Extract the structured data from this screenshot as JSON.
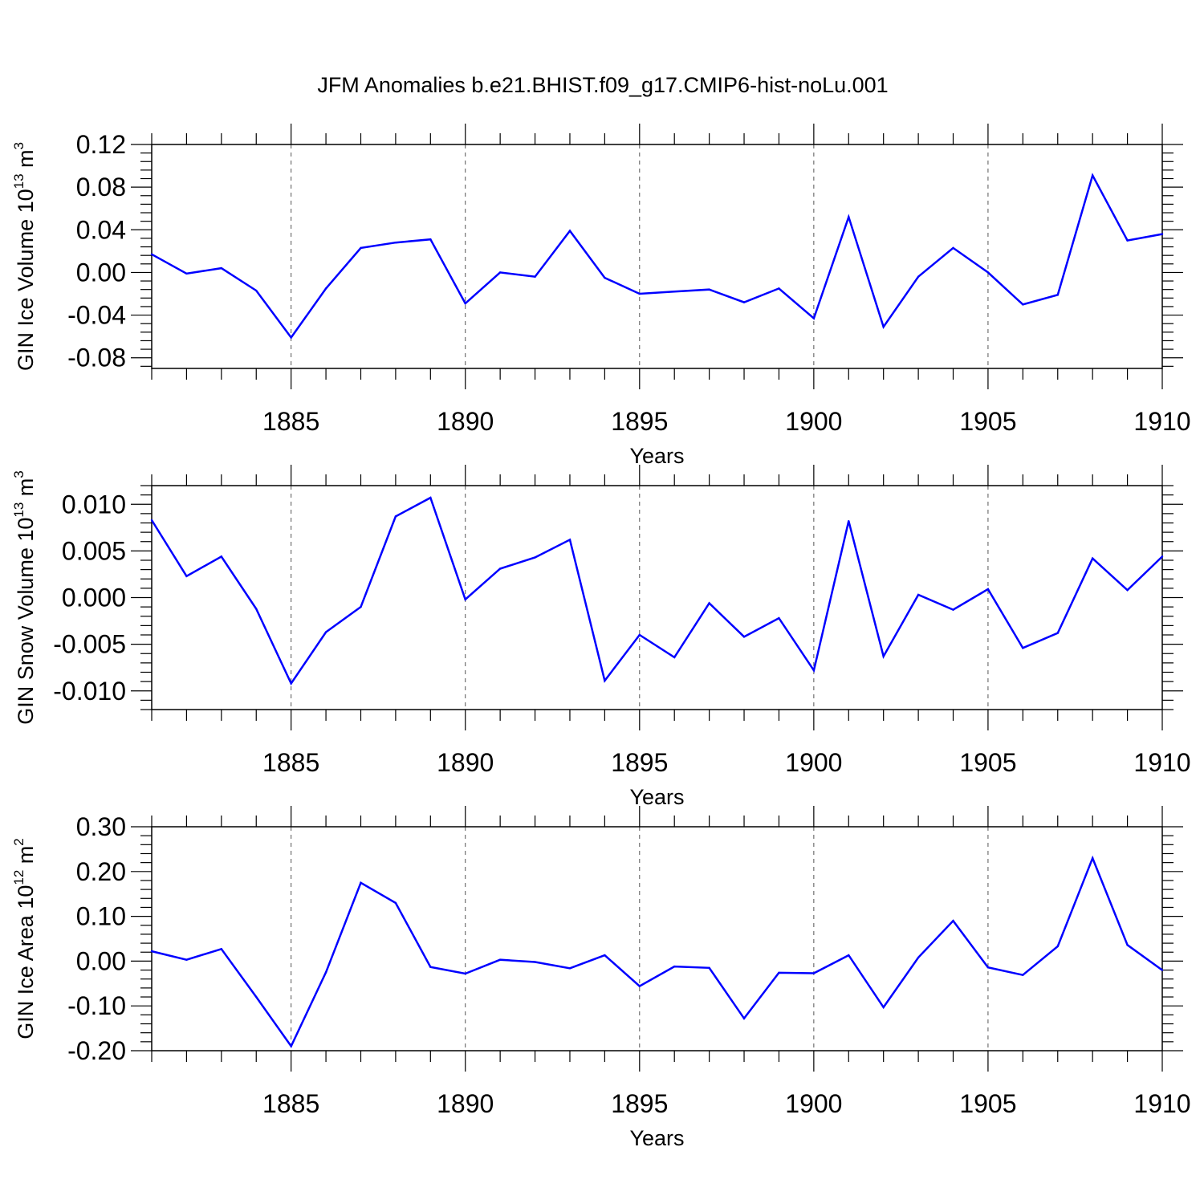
{
  "chart_data": {
    "type": "line",
    "title": "JFM Anomalies b.e21.BHIST.f09_g17.CMIP6-hist-noLu.001",
    "line_color": "#0000ff",
    "panels": [
      {
        "type": "line",
        "ylabel_text": "GIN Ice Volume 10",
        "ylabel_exp": "13",
        "ylabel_unit": " m",
        "ylabel_unit_exp": "3",
        "xlabel": "Years",
        "xlim": [
          1881,
          1910
        ],
        "ylim": [
          -0.09,
          0.12
        ],
        "yticks": [
          0.12,
          0.08,
          0.04,
          0.0,
          -0.04,
          -0.08
        ],
        "ytick_labels": [
          "0.12",
          "0.08",
          "0.04",
          "0.00",
          "-0.04",
          "-0.08"
        ],
        "xticks": [
          1885,
          1890,
          1895,
          1900,
          1905,
          1910
        ],
        "xtick_labels": [
          "1885",
          "1890",
          "1895",
          "1900",
          "1905",
          "1910"
        ],
        "x": [
          1881,
          1882,
          1883,
          1884,
          1885,
          1886,
          1887,
          1888,
          1889,
          1890,
          1891,
          1892,
          1893,
          1894,
          1895,
          1896,
          1897,
          1898,
          1899,
          1900,
          1901,
          1902,
          1903,
          1904,
          1905,
          1906,
          1907,
          1908,
          1909,
          1910
        ],
        "y": [
          0.017,
          -0.001,
          0.004,
          -0.017,
          -0.061,
          -0.015,
          0.023,
          0.028,
          0.031,
          -0.029,
          0.0,
          -0.004,
          0.039,
          -0.005,
          -0.02,
          -0.018,
          -0.016,
          -0.028,
          -0.015,
          -0.043,
          0.052,
          -0.051,
          -0.004,
          0.023,
          0.0,
          -0.03,
          -0.021,
          0.091,
          0.03,
          0.036
        ]
      },
      {
        "type": "line",
        "ylabel_text": "GIN Snow Volume 10",
        "ylabel_exp": "13",
        "ylabel_unit": " m",
        "ylabel_unit_exp": "3",
        "xlabel": "Years",
        "xlim": [
          1881,
          1910
        ],
        "ylim": [
          -0.012,
          0.012
        ],
        "yticks": [
          0.01,
          0.005,
          0.0,
          -0.005,
          -0.01
        ],
        "ytick_labels": [
          "0.010",
          "0.005",
          "0.000",
          "-0.005",
          "-0.010"
        ],
        "xticks": [
          1885,
          1890,
          1895,
          1900,
          1905,
          1910
        ],
        "xtick_labels": [
          "1885",
          "1890",
          "1895",
          "1900",
          "1905",
          "1910"
        ],
        "x": [
          1881,
          1882,
          1883,
          1884,
          1885,
          1886,
          1887,
          1888,
          1889,
          1890,
          1891,
          1892,
          1893,
          1894,
          1895,
          1896,
          1897,
          1898,
          1899,
          1900,
          1901,
          1902,
          1903,
          1904,
          1905,
          1906,
          1907,
          1908,
          1909,
          1910
        ],
        "y": [
          0.0083,
          0.0023,
          0.0044,
          -0.0012,
          -0.0092,
          -0.0037,
          -0.001,
          0.0087,
          0.0107,
          -0.0002,
          0.0031,
          0.0043,
          0.0062,
          -0.0089,
          -0.004,
          -0.0064,
          -0.0006,
          -0.0042,
          -0.0022,
          -0.0078,
          0.0082,
          -0.0063,
          0.0003,
          -0.0013,
          0.0009,
          -0.0054,
          -0.0038,
          0.0042,
          0.0008,
          0.0044
        ]
      },
      {
        "type": "line",
        "ylabel_text": "GIN Ice Area 10",
        "ylabel_exp": "12",
        "ylabel_unit": " m",
        "ylabel_unit_exp": "2",
        "xlabel": "Years",
        "xlim": [
          1881,
          1910
        ],
        "ylim": [
          -0.2,
          0.3
        ],
        "yticks": [
          0.3,
          0.2,
          0.1,
          0.0,
          -0.1,
          -0.2
        ],
        "ytick_labels": [
          "0.30",
          "0.20",
          "0.10",
          "0.00",
          "-0.10",
          "-0.20"
        ],
        "xticks": [
          1885,
          1890,
          1895,
          1900,
          1905,
          1910
        ],
        "xtick_labels": [
          "1885",
          "1890",
          "1895",
          "1900",
          "1905",
          "1910"
        ],
        "x": [
          1881,
          1882,
          1883,
          1884,
          1885,
          1886,
          1887,
          1888,
          1889,
          1890,
          1891,
          1892,
          1893,
          1894,
          1895,
          1896,
          1897,
          1898,
          1899,
          1900,
          1901,
          1902,
          1903,
          1904,
          1905,
          1906,
          1907,
          1908,
          1909,
          1910
        ],
        "y": [
          0.022,
          0.003,
          0.027,
          -0.08,
          -0.19,
          -0.025,
          0.175,
          0.13,
          -0.013,
          -0.028,
          0.003,
          -0.002,
          -0.016,
          0.013,
          -0.056,
          -0.012,
          -0.015,
          -0.128,
          -0.026,
          -0.027,
          0.013,
          -0.103,
          0.008,
          0.09,
          -0.014,
          -0.031,
          0.033,
          0.23,
          0.036,
          -0.02
        ]
      }
    ]
  }
}
